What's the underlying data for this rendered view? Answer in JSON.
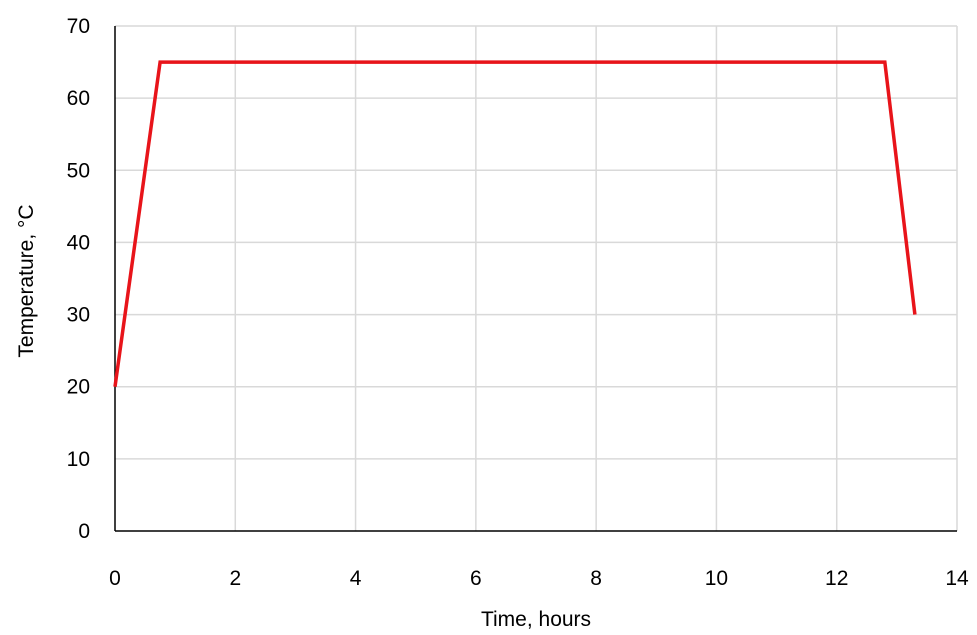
{
  "chart_data": {
    "type": "line",
    "xlabel": "Time, hours",
    "ylabel": "Temperature, °C",
    "xlim": [
      0,
      14
    ],
    "ylim": [
      0,
      70
    ],
    "xticks": [
      0,
      2,
      4,
      6,
      8,
      10,
      12,
      14
    ],
    "yticks": [
      0,
      10,
      20,
      30,
      40,
      50,
      60,
      70
    ],
    "grid": true,
    "series": [
      {
        "color": "#e8141a",
        "x": [
          0,
          0.75,
          12.8,
          13.3
        ],
        "y": [
          20,
          65,
          65,
          30
        ]
      }
    ]
  }
}
